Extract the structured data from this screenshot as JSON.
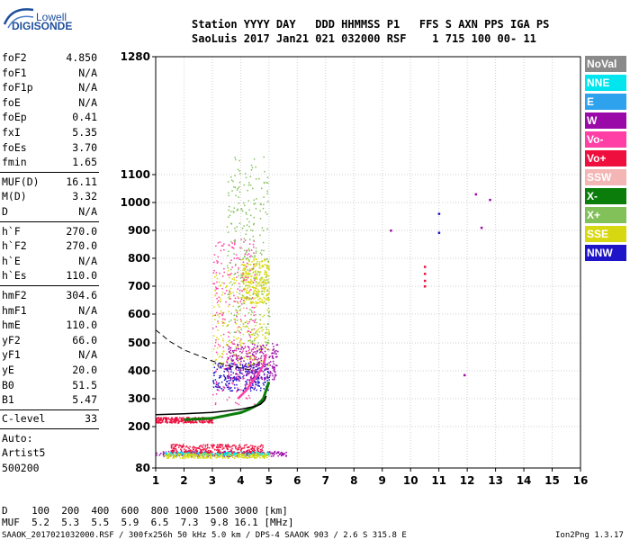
{
  "logo": {
    "line1": "Lowell",
    "line2": "DIGISONDE"
  },
  "header": {
    "line1": "Station YYYY DAY   DDD HHMMSS P1   FFS S AXN PPS IGA PS",
    "line2": "SaoLuis 2017 Jan21 021 032000 RSF    1 715 100 00- 11"
  },
  "params": {
    "group1": [
      {
        "name": "foF2",
        "value": "4.850"
      },
      {
        "name": "foF1",
        "value": "N/A"
      },
      {
        "name": "foF1p",
        "value": "N/A"
      },
      {
        "name": "foE",
        "value": "N/A"
      },
      {
        "name": "foEp",
        "value": "0.41"
      },
      {
        "name": "fxI",
        "value": "5.35"
      },
      {
        "name": "foEs",
        "value": "3.70"
      },
      {
        "name": "fmin",
        "value": "1.65"
      }
    ],
    "group2": [
      {
        "name": "MUF(D)",
        "value": "16.11"
      },
      {
        "name": "M(D)",
        "value": "3.32"
      },
      {
        "name": "D",
        "value": "N/A"
      }
    ],
    "group3": [
      {
        "name": "h`F",
        "value": "270.0"
      },
      {
        "name": "h`F2",
        "value": "270.0"
      },
      {
        "name": "h`E",
        "value": "N/A"
      },
      {
        "name": "h`Es",
        "value": "110.0"
      }
    ],
    "group4": [
      {
        "name": "hmF2",
        "value": "304.6"
      },
      {
        "name": "hmF1",
        "value": "N/A"
      },
      {
        "name": "hmE",
        "value": "110.0"
      },
      {
        "name": "yF2",
        "value": "66.0"
      },
      {
        "name": "yF1",
        "value": "N/A"
      },
      {
        "name": "yE",
        "value": "20.0"
      },
      {
        "name": "B0",
        "value": "51.5"
      },
      {
        "name": "B1",
        "value": "5.47"
      }
    ],
    "clevel": {
      "name": "C-level",
      "value": "33"
    },
    "auto": [
      "Auto:",
      "Artist5",
      "500200"
    ]
  },
  "legend": [
    {
      "label": "NoVal",
      "color": "#8a8a8a"
    },
    {
      "label": "NNE",
      "color": "#00e5ee"
    },
    {
      "label": "E",
      "color": "#2fa2ee"
    },
    {
      "label": "W",
      "color": "#9a0aa8"
    },
    {
      "label": "Vo-",
      "color": "#ff3fa6"
    },
    {
      "label": "Vo+",
      "color": "#ee0f3f"
    },
    {
      "label": "SSW",
      "color": "#f4b5b5"
    },
    {
      "label": "X-",
      "color": "#0a7d0a"
    },
    {
      "label": "X+",
      "color": "#82c05a"
    },
    {
      "label": "SSE",
      "color": "#d8d812"
    },
    {
      "label": "NNW",
      "color": "#1e14c8"
    }
  ],
  "chart_data": {
    "type": "scatter",
    "x_ticks": [
      "1",
      "2",
      "3",
      "4",
      "5",
      "6",
      "7",
      "8",
      "9",
      "10",
      "11",
      "12",
      "13",
      "14",
      "15",
      "16"
    ],
    "y_ticks": [
      "80",
      "200",
      "300",
      "400",
      "500",
      "600",
      "700",
      "800",
      "900",
      "1000",
      "1100",
      "1280"
    ],
    "xlim": [
      1,
      16
    ],
    "ylim": [
      80,
      1280
    ],
    "grid": true,
    "legend_position": "right",
    "traces": {
      "profile_black": [
        [
          1,
          243
        ],
        [
          2,
          246
        ],
        [
          3,
          251
        ],
        [
          3.5,
          256
        ],
        [
          4,
          262
        ],
        [
          4.3,
          268
        ],
        [
          4.5,
          272
        ],
        [
          4.7,
          280
        ],
        [
          4.85,
          295
        ],
        [
          4.9,
          310
        ]
      ],
      "model_dashed": [
        [
          1,
          545
        ],
        [
          1.5,
          505
        ],
        [
          2,
          475
        ],
        [
          2.5,
          455
        ],
        [
          3,
          435
        ],
        [
          3.5,
          420
        ],
        [
          4,
          410
        ],
        [
          4.5,
          400
        ]
      ],
      "xminus_green": [
        [
          2,
          225
        ],
        [
          3,
          230
        ],
        [
          3.5,
          240
        ],
        [
          4,
          250
        ],
        [
          4.3,
          262
        ],
        [
          4.6,
          278
        ],
        [
          4.8,
          300
        ],
        [
          4.9,
          330
        ],
        [
          5,
          360
        ]
      ],
      "vominus_pink": [
        [
          3.9,
          300
        ],
        [
          4.2,
          330
        ],
        [
          4.4,
          360
        ],
        [
          4.6,
          385
        ],
        [
          4.8,
          420
        ],
        [
          4.9,
          460
        ]
      ],
      "scatter_high": [
        [
          10.5,
          700
        ],
        [
          10.5,
          720
        ],
        [
          10.5,
          745
        ],
        [
          10.5,
          770
        ],
        [
          11,
          960
        ],
        [
          11,
          892
        ],
        [
          11.9,
          385
        ],
        [
          12.5,
          910
        ],
        [
          12.8,
          1010
        ],
        [
          9.3,
          900
        ],
        [
          12.3,
          1030
        ]
      ]
    },
    "clusters": [
      {
        "series": "NNW",
        "x": [
          3.0,
          5.0
        ],
        "y": [
          330,
          430
        ]
      },
      {
        "series": "W",
        "x": [
          3.5,
          5.3
        ],
        "y": [
          370,
          500
        ]
      },
      {
        "series": "SSE",
        "x": [
          3.0,
          5.0
        ],
        "y": [
          420,
          760
        ]
      },
      {
        "series": "SSE",
        "x": [
          4.0,
          5.0
        ],
        "y": [
          640,
          800
        ]
      },
      {
        "series": "Vo-",
        "x": [
          3.0,
          4.5
        ],
        "y": [
          280,
          870
        ]
      },
      {
        "series": "X+",
        "x": [
          3.5,
          5.0
        ],
        "y": [
          500,
          1130
        ]
      },
      {
        "series": "W",
        "x": [
          1.0,
          5.6
        ],
        "y": [
          115,
          130
        ]
      },
      {
        "series": "NNE",
        "x": [
          1.3,
          5.0
        ],
        "y": [
          118,
          128
        ]
      },
      {
        "series": "SSE",
        "x": [
          1.3,
          5.0
        ],
        "y": [
          110,
          124
        ]
      },
      {
        "series": "Vo+",
        "x": [
          1.5,
          4.8
        ],
        "y": [
          125,
          150
        ]
      },
      {
        "series": "Vo+",
        "x": [
          1.0,
          3.0
        ],
        "y": [
          215,
          235
        ]
      }
    ]
  },
  "footer": {
    "line1": "D    100  200  400  600  800 1000 1500 3000 [km]",
    "line2": "MUF  5.2  5.3  5.5  5.9  6.5  7.3  9.8 16.1 [MHz]",
    "line3": "SAAOK_2017021032000.RSF / 300fx256h 50 kHz 5.0 km / DPS-4 SAAOK 903 / 2.6 S 315.8 E",
    "version": "Ion2Png 1.3.17"
  }
}
